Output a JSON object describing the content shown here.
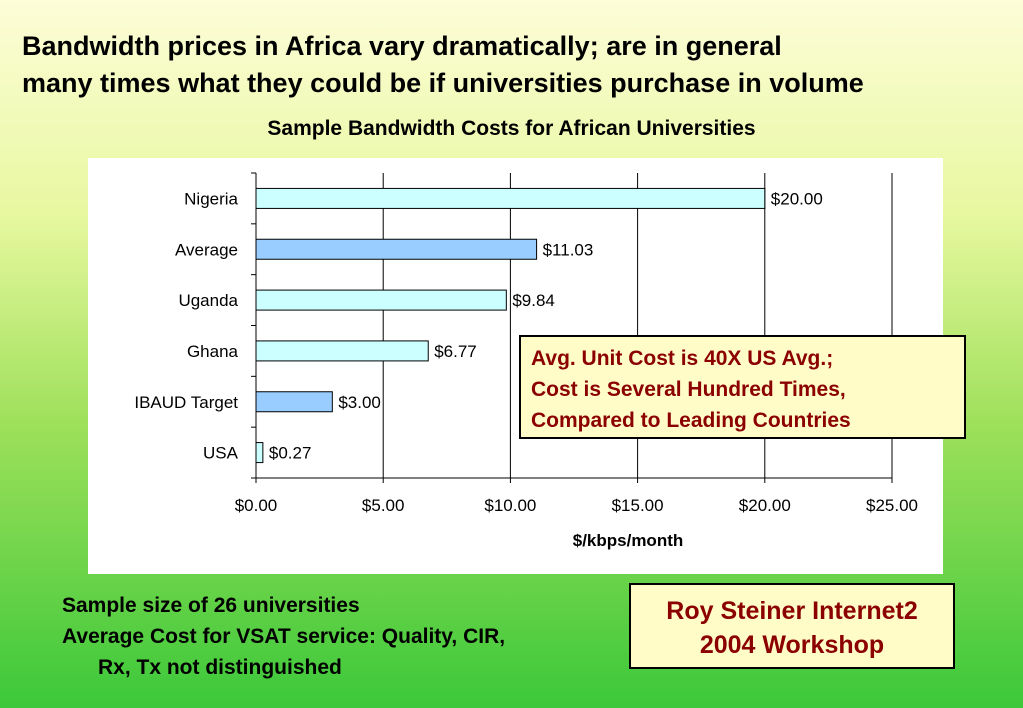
{
  "headline": {
    "line1": "Bandwidth prices in Africa vary dramatically; are in general",
    "line2": "many times what they could be if universities purchase in volume"
  },
  "chart_data": {
    "type": "bar",
    "orientation": "horizontal",
    "title": "Sample Bandwidth Costs for African Universities",
    "xlabel": "$/kbps/month",
    "ylabel": "",
    "categories": [
      "Nigeria",
      "Average",
      "Uganda",
      "Ghana",
      "IBAUD Target",
      "USA"
    ],
    "values": [
      20.0,
      11.03,
      9.84,
      6.77,
      3.0,
      0.27
    ],
    "data_labels": [
      "$20.00",
      "$11.03",
      "$9.84",
      "$6.77",
      "$3.00",
      "$0.27"
    ],
    "bar_colors": [
      "#ccffff",
      "#99ccff",
      "#ccffff",
      "#ccffff",
      "#99ccff",
      "#ccffff"
    ],
    "xlim": [
      0,
      25
    ],
    "xticks": [
      0,
      5,
      10,
      15,
      20,
      25
    ],
    "xtick_labels": [
      "$0.00",
      "$5.00",
      "$10.00",
      "$15.00",
      "$20.00",
      "$25.00"
    ],
    "grid": "vertical gridlines on",
    "legend": "none"
  },
  "callout": {
    "line1": "Avg. Unit Cost is 40X US Avg.;",
    "line2": "Cost is Several Hundred Times,",
    "line3": "Compared to Leading Countries"
  },
  "notes": {
    "line1": "Sample size of 26 universities",
    "line2": "Average Cost for VSAT service: Quality, CIR,",
    "line3": "Rx, Tx not distinguished"
  },
  "credit": {
    "line1": "Roy Steiner Internet2",
    "line2": "2004 Workshop"
  },
  "colors": {
    "callout_text": "#8b0000",
    "callout_bg": "#fffcc8"
  }
}
